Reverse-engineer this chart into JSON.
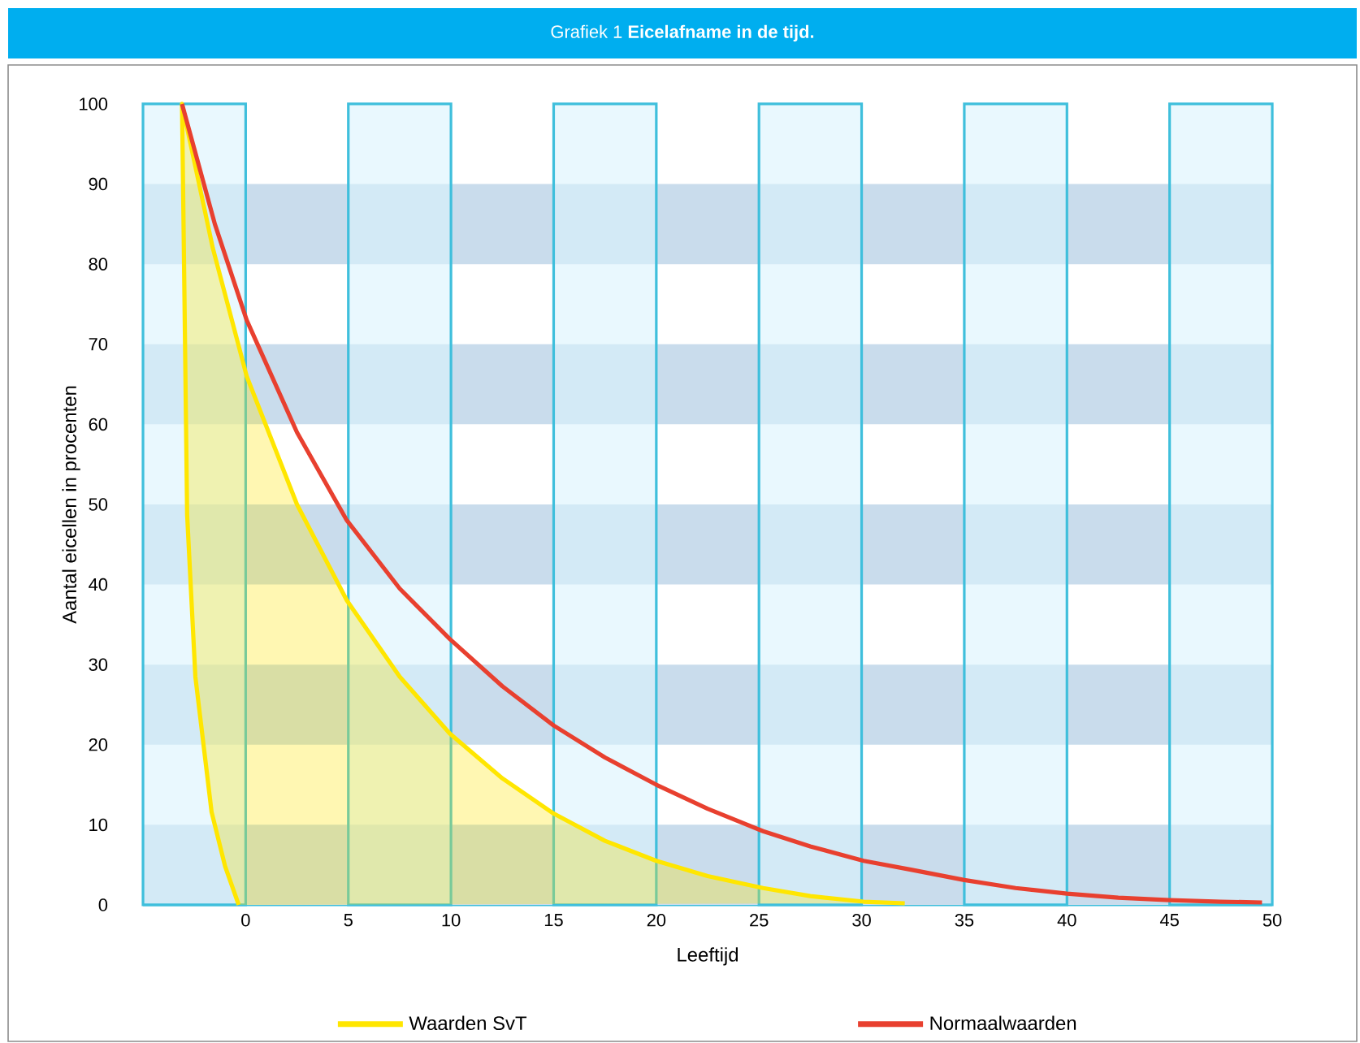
{
  "chart_data": {
    "type": "line",
    "title": "Grafiek 1   **Eicelafname in de tijd.**",
    "xlabel": "Leeftijd",
    "ylabel": "Aantal eicellen in procenten",
    "xlim": [
      -5,
      50
    ],
    "ylim": [
      0,
      100
    ],
    "xticks": [
      0,
      5,
      10,
      15,
      20,
      25,
      30,
      35,
      40,
      45,
      50
    ],
    "yticks": [
      0,
      10,
      20,
      30,
      40,
      50,
      60,
      70,
      80,
      90,
      100
    ],
    "series": [
      {
        "name": "Waarden SvT",
        "type": "area",
        "color": "#ffe600",
        "x": [
          -0.34,
          -1.0,
          -1.66,
          -2.45,
          -2.85,
          -2.98,
          -3.1,
          -1.6,
          0.05,
          2.5,
          4.93,
          7.5,
          9.94,
          12.5,
          15.0,
          17.5,
          20.0,
          22.5,
          25.2,
          27.5,
          30.1,
          32.1
        ],
        "values": [
          0,
          4.8,
          11.6,
          28.5,
          48.7,
          75.8,
          100,
          82,
          66,
          50,
          38,
          28.5,
          21.4,
          15.8,
          11.4,
          8,
          5.5,
          3.6,
          2.1,
          1.1,
          0.4,
          0.2
        ]
      },
      {
        "name": "Normaalwaarden",
        "color": "#e8402f",
        "x": [
          -3.1,
          -1.5,
          0.05,
          2.5,
          4.93,
          7.5,
          9.94,
          12.5,
          15.0,
          17.5,
          20.0,
          22.5,
          25.2,
          27.5,
          30.1,
          32.4,
          35.0,
          37.5,
          40.0,
          42.5,
          45.0,
          47.5,
          49.5
        ],
        "values": [
          100,
          85,
          73,
          59,
          48,
          39.5,
          33.2,
          27.3,
          22.4,
          18.4,
          15,
          12,
          9.2,
          7.3,
          5.5,
          4.4,
          3.1,
          2.1,
          1.4,
          0.9,
          0.6,
          0.4,
          0.3
        ]
      }
    ],
    "bands": [
      {
        "axis": "y",
        "from": 0,
        "to": 10,
        "color": "#c9dcec"
      },
      {
        "axis": "y",
        "from": 20,
        "to": 30,
        "color": "#c9dcec"
      },
      {
        "axis": "y",
        "from": 40,
        "to": 50,
        "color": "#c9dcec"
      },
      {
        "axis": "y",
        "from": 60,
        "to": 70,
        "color": "#c9dcec"
      },
      {
        "axis": "y",
        "from": 80,
        "to": 90,
        "color": "#c9dcec"
      },
      {
        "axis": "x",
        "from": -5,
        "to": 0,
        "color": "#3fbfdc"
      },
      {
        "axis": "x",
        "from": 5,
        "to": 10,
        "color": "#3fbfdc"
      },
      {
        "axis": "x",
        "from": 15,
        "to": 20,
        "color": "#3fbfdc"
      },
      {
        "axis": "x",
        "from": 25,
        "to": 30,
        "color": "#3fbfdc"
      },
      {
        "axis": "x",
        "from": 35,
        "to": 40,
        "color": "#3fbfdc"
      },
      {
        "axis": "x",
        "from": 45,
        "to": 50,
        "color": "#3fbfdc"
      }
    ],
    "grid": false,
    "legend": "bottom",
    "marker": "none",
    "line_style": "solid"
  }
}
